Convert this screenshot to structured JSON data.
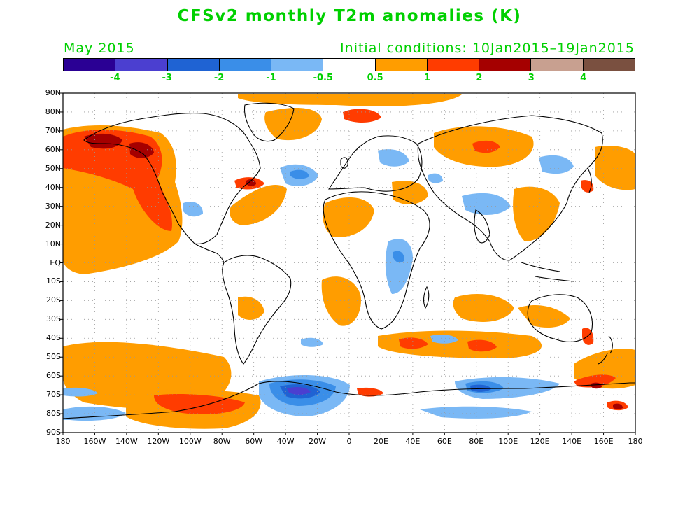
{
  "title": "CFSv2 monthly T2m anomalies (K)",
  "valid_month": "May 2015",
  "initial_conditions": "Initial conditions: 10Jan2015–19Jan2015",
  "colorbar": {
    "colors": [
      "#2a0094",
      "#4b3fd0",
      "#1f63d3",
      "#3a8ee8",
      "#7ab8f5",
      "#ffffff",
      "#ff9d00",
      "#ff3c00",
      "#a50000",
      "#c8a090",
      "#7a5040"
    ],
    "labels": [
      "-4",
      "-3",
      "-2",
      "-1",
      "-0.5",
      "0.5",
      "1",
      "2",
      "3",
      "4"
    ]
  },
  "map": {
    "latitude_labels": [
      "90N",
      "80N",
      "70N",
      "60N",
      "50N",
      "40N",
      "30N",
      "20N",
      "10N",
      "EQ",
      "10S",
      "20S",
      "30S",
      "40S",
      "50S",
      "60S",
      "70S",
      "80S",
      "90S"
    ],
    "longitude_labels": [
      "180",
      "160W",
      "140W",
      "120W",
      "100W",
      "80W",
      "60W",
      "40W",
      "20W",
      "0",
      "20E",
      "40E",
      "60E",
      "80E",
      "100E",
      "120E",
      "140E",
      "160E",
      "180"
    ],
    "grid": "dotted",
    "projection": "cylindrical equidistant",
    "fill_colors": {
      "warm_1": "#ff9d00",
      "warm_2": "#ff3c00",
      "warm_3": "#a50000",
      "cold_1": "#7ab8f5",
      "cold_2": "#3a8ee8",
      "cold_3": "#1f63d3",
      "cold_4": "#4b3fd0",
      "cold_5": "#2a0094"
    }
  }
}
